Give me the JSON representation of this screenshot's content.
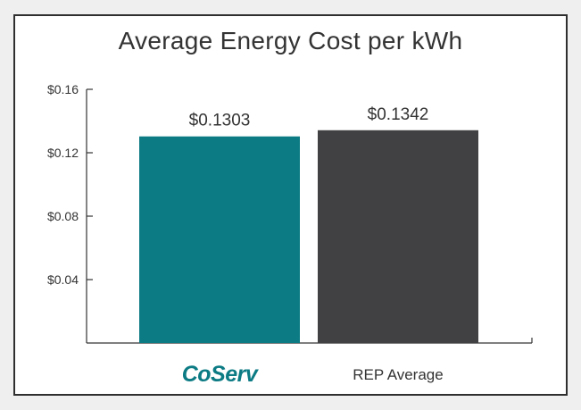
{
  "chart_data": {
    "type": "bar",
    "title": "Average Energy Cost per kWh",
    "categories": [
      "CoServ",
      "REP Average"
    ],
    "values": [
      0.1303,
      0.1342
    ],
    "data_labels": [
      "$0.1303",
      "$0.1342"
    ],
    "ylim": [
      0,
      0.16
    ],
    "yticks": [
      0.04,
      0.08,
      0.12,
      0.16
    ],
    "ytick_labels": [
      "$0.04",
      "$0.08",
      "$0.12",
      "$0.16"
    ],
    "xlabel": "",
    "ylabel": "",
    "grid": false,
    "legend": "none",
    "colors": [
      "#0c7b84",
      "#414143"
    ]
  }
}
